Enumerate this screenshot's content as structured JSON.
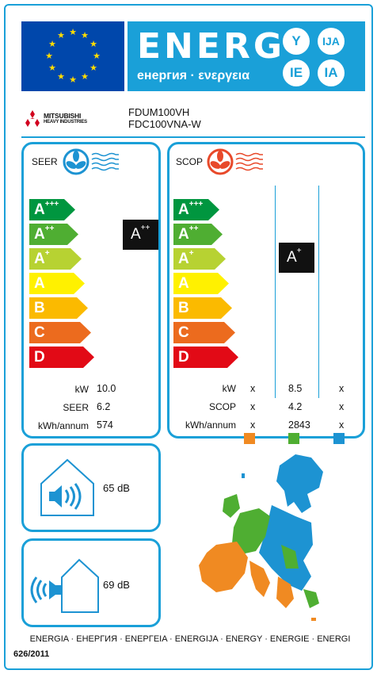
{
  "header": {
    "energy_word": "ENERG",
    "energy_sub": "енергия · ενεργεια",
    "bubbles": [
      "Y",
      "IJA",
      "IE",
      "IA"
    ]
  },
  "manufacturer": {
    "name_line1": "MITSUBISHI",
    "name_line2": "HEAVY INDUSTRIES",
    "indoor_model": "FDUM100VH",
    "outdoor_model": "FDC100VNA-W"
  },
  "classes": [
    {
      "letter": "A",
      "sup": "+++",
      "color": "#00963f"
    },
    {
      "letter": "A",
      "sup": "++",
      "color": "#4fae32"
    },
    {
      "letter": "A",
      "sup": "+",
      "color": "#b7d232"
    },
    {
      "letter": "A",
      "sup": "",
      "color": "#fff100"
    },
    {
      "letter": "B",
      "sup": "",
      "color": "#fbba00"
    },
    {
      "letter": "C",
      "sup": "",
      "color": "#ec6b1e"
    },
    {
      "letter": "D",
      "sup": "",
      "color": "#e20a16"
    }
  ],
  "seer": {
    "title": "SEER",
    "badge_letter": "A",
    "badge_sup": "++",
    "rows": [
      {
        "label": "kW",
        "value": "10.0"
      },
      {
        "label": "SEER",
        "value": "6.2"
      },
      {
        "label": "kWh/annum",
        "value": "574"
      }
    ]
  },
  "scop": {
    "title": "SCOP",
    "badge_letter": "A",
    "badge_sup": "+",
    "rows": [
      {
        "label": "kW",
        "col1": "x",
        "col2": "8.5",
        "col3": "x"
      },
      {
        "label": "SCOP",
        "col1": "x",
        "col2": "4.2",
        "col3": "x"
      },
      {
        "label": "kWh/annum",
        "col1": "x",
        "col2": "2843",
        "col3": "x"
      }
    ],
    "zone_colors": [
      "#f08a22",
      "#4fae32",
      "#1d93d2"
    ]
  },
  "noise": {
    "indoor": "65 dB",
    "outdoor": "69 dB"
  },
  "footer": {
    "languages": "ENERGIA · ЕНЕРГИЯ · ΕΝΕΡΓΕΙΑ · ENERGIJA · ENERGY · ENERGIE · ENERGI",
    "regulation": "626/2011"
  }
}
